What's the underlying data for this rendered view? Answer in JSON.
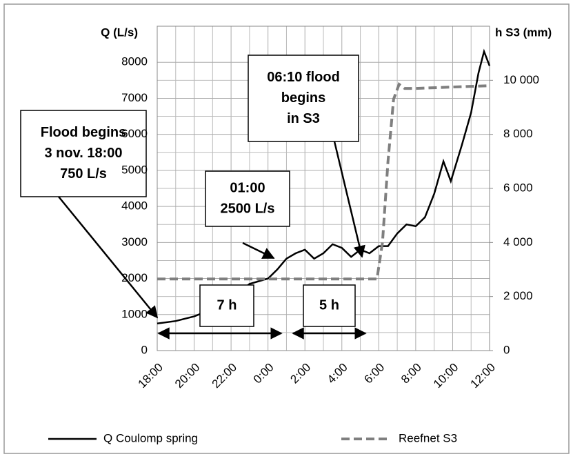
{
  "chart_data": {
    "type": "line",
    "y_label": "Q (L/s)",
    "y2_label": "h S3 (mm)",
    "xlim": [
      0,
      18
    ],
    "xticks": [
      {
        "value": 0,
        "label": "18:00"
      },
      {
        "value": 2,
        "label": "20:00"
      },
      {
        "value": 4,
        "label": "22:00"
      },
      {
        "value": 6,
        "label": "0:00"
      },
      {
        "value": 8,
        "label": "2:00"
      },
      {
        "value": 10,
        "label": "4:00"
      },
      {
        "value": 12,
        "label": "6:00"
      },
      {
        "value": 14,
        "label": "8:00"
      },
      {
        "value": 16,
        "label": "10:00"
      },
      {
        "value": 18,
        "label": "12:00"
      }
    ],
    "ylim": [
      0,
      9000
    ],
    "yticks": [
      0,
      1000,
      2000,
      3000,
      4000,
      5000,
      6000,
      7000,
      8000
    ],
    "y2lim": [
      0,
      12000
    ],
    "y2ticks": [
      0,
      {
        "value": 2000,
        "label": "2 000"
      },
      {
        "value": 4000,
        "label": "4 000"
      },
      {
        "value": 6000,
        "label": "6 000"
      },
      {
        "value": 8000,
        "label": "8 000"
      },
      {
        "value": 10000,
        "label": "10 000"
      }
    ],
    "grid": true,
    "series": [
      {
        "name": "Q Coulomp spring",
        "color": "#000000",
        "dash": false,
        "x": [
          0,
          1,
          2,
          3,
          4,
          4.5,
          5,
          6,
          6.5,
          7,
          7.5,
          8,
          8.5,
          9,
          9.5,
          10,
          10.5,
          11,
          11.5,
          12,
          12.5,
          13,
          13.5,
          14,
          14.5,
          15,
          15.5,
          15.9,
          16.5,
          17,
          17.4,
          17.7,
          18
        ],
        "values": [
          750,
          820,
          950,
          1150,
          1450,
          1650,
          1850,
          2000,
          2250,
          2550,
          2700,
          2800,
          2550,
          2700,
          2950,
          2850,
          2600,
          2800,
          2700,
          2900,
          2900,
          3250,
          3500,
          3450,
          3700,
          4350,
          5250,
          4700,
          5700,
          6600,
          7700,
          8300,
          7900
        ]
      },
      {
        "name": "Reefnet S3",
        "color": "#7f7f7f",
        "dash": true,
        "axis": "y2",
        "x": [
          0,
          11.9,
          12.2,
          12.5,
          12.8,
          13.1,
          13.4,
          14,
          16,
          18
        ],
        "values": [
          2650,
          2650,
          4000,
          7000,
          9300,
          9850,
          9700,
          9700,
          9750,
          9800
        ]
      }
    ],
    "annotations": [
      {
        "lines": [
          "Flood begins",
          "3 nov. 18:00",
          "750 L/s"
        ]
      },
      {
        "lines": [
          "01:00",
          "2500 L/s"
        ]
      },
      {
        "lines": [
          "06:10 flood",
          "begins",
          "in S3"
        ]
      },
      {
        "lines": [
          "7 h"
        ]
      },
      {
        "lines": [
          "5 h"
        ]
      }
    ]
  }
}
